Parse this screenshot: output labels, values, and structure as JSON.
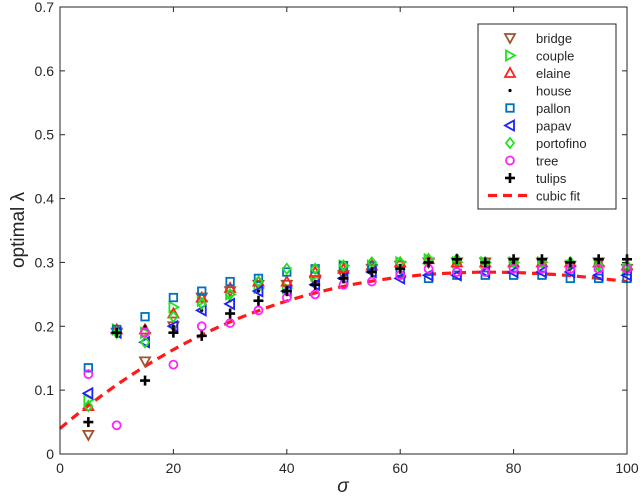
{
  "chart_data": {
    "type": "scatter",
    "xlabel": "σ",
    "ylabel": "optimal λ",
    "xlim": [
      0,
      100
    ],
    "ylim": [
      0,
      0.7
    ],
    "x_ticks": [
      0,
      20,
      40,
      60,
      80,
      100
    ],
    "y_ticks": [
      0,
      0.1,
      0.2,
      0.3,
      0.4,
      0.5,
      0.6,
      0.7
    ],
    "grid": false,
    "legend_position": "top-right",
    "x": [
      5,
      10,
      15,
      20,
      25,
      30,
      35,
      40,
      45,
      50,
      55,
      60,
      65,
      70,
      75,
      80,
      85,
      90,
      95,
      100
    ],
    "series": [
      {
        "name": "bridge",
        "marker": "triangle-down",
        "color": "#a0522d",
        "values": [
          0.03,
          0.19,
          0.145,
          0.2,
          0.245,
          0.255,
          0.265,
          0.265,
          0.27,
          0.28,
          0.29,
          0.295,
          0.3,
          0.3,
          0.3,
          0.3,
          0.3,
          0.295,
          0.3,
          0.29
        ]
      },
      {
        "name": "couple",
        "marker": "triangle-right",
        "color": "#22e022",
        "values": [
          0.085,
          0.195,
          0.19,
          0.23,
          0.24,
          0.25,
          0.26,
          0.26,
          0.28,
          0.295,
          0.295,
          0.3,
          0.305,
          0.3,
          0.3,
          0.3,
          0.3,
          0.295,
          0.295,
          0.29
        ]
      },
      {
        "name": "elaine",
        "marker": "triangle-up",
        "color": "#ff2020",
        "values": [
          0.075,
          0.195,
          0.195,
          0.22,
          0.245,
          0.26,
          0.27,
          0.27,
          0.285,
          0.29,
          0.295,
          0.3,
          0.305,
          0.3,
          0.3,
          0.3,
          0.3,
          0.3,
          0.3,
          0.295
        ]
      },
      {
        "name": "house",
        "marker": "dot",
        "color": "#000000",
        "values": [
          0.13,
          0.19,
          0.2,
          0.2,
          0.225,
          0.24,
          0.255,
          0.255,
          0.27,
          0.28,
          0.29,
          0.295,
          0.3,
          0.3,
          0.3,
          0.3,
          0.3,
          0.3,
          0.3,
          0.3
        ]
      },
      {
        "name": "pallon",
        "marker": "square",
        "color": "#0072bd",
        "values": [
          0.135,
          0.195,
          0.215,
          0.245,
          0.255,
          0.27,
          0.275,
          0.285,
          0.29,
          0.295,
          0.295,
          0.285,
          0.275,
          0.28,
          0.28,
          0.28,
          0.28,
          0.275,
          0.275,
          0.275
        ]
      },
      {
        "name": "papav",
        "marker": "triangle-left",
        "color": "#2020ff",
        "values": [
          0.095,
          0.19,
          0.175,
          0.2,
          0.225,
          0.235,
          0.255,
          0.255,
          0.265,
          0.275,
          0.285,
          0.275,
          0.28,
          0.28,
          0.285,
          0.285,
          0.285,
          0.285,
          0.28,
          0.28
        ]
      },
      {
        "name": "portofino",
        "marker": "diamond",
        "color": "#22e022",
        "values": [
          0.075,
          0.19,
          0.175,
          0.215,
          0.235,
          0.25,
          0.27,
          0.29,
          0.29,
          0.295,
          0.3,
          0.3,
          0.305,
          0.305,
          0.3,
          0.3,
          0.3,
          0.3,
          0.295,
          0.295
        ]
      },
      {
        "name": "tree",
        "marker": "circle",
        "color": "#ff22ff",
        "values": [
          0.125,
          0.045,
          0.19,
          0.14,
          0.2,
          0.205,
          0.225,
          0.245,
          0.25,
          0.265,
          0.27,
          0.28,
          0.29,
          0.285,
          0.285,
          0.29,
          0.29,
          0.29,
          0.29,
          0.29
        ]
      },
      {
        "name": "tulips",
        "marker": "plus",
        "color": "#000000",
        "values": [
          0.05,
          0.19,
          0.115,
          0.19,
          0.185,
          0.22,
          0.24,
          0.255,
          0.265,
          0.275,
          0.285,
          0.29,
          0.3,
          0.305,
          0.3,
          0.305,
          0.305,
          0.3,
          0.305,
          0.305
        ]
      }
    ],
    "fit": {
      "name": "cubic fit",
      "style": "dashed",
      "color": "#ff1a1a",
      "coefficients": [
        0.04,
        0.0075,
        -7e-05,
        1.8e-07
      ]
    }
  }
}
